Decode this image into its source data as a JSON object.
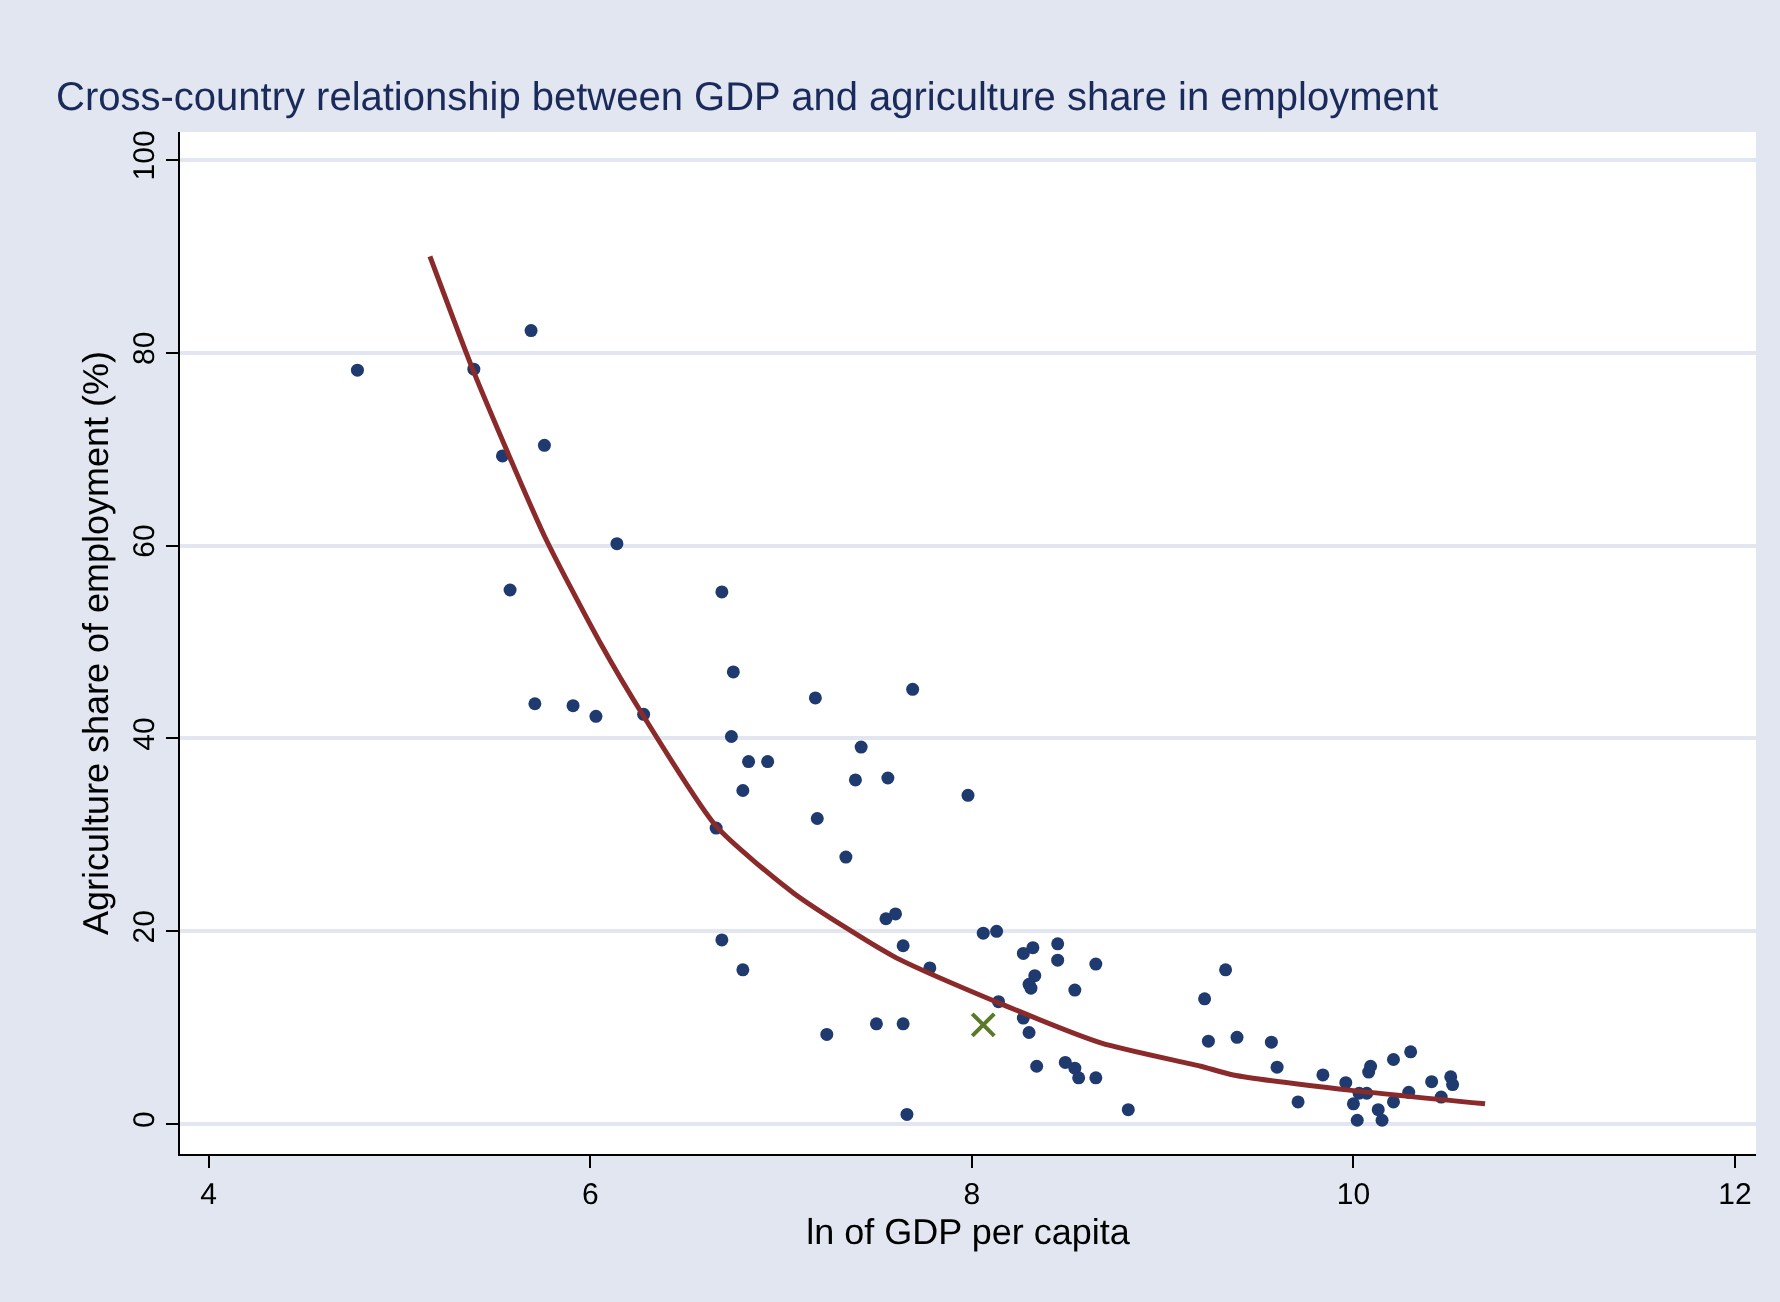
{
  "chart_data": {
    "type": "scatter",
    "title": "Cross-country relationship between GDP and agriculture share in employment",
    "xlabel": "ln of GDP per capita",
    "ylabel": "Agriculture share of employment (%)",
    "xlim": [
      3.85,
      12.11
    ],
    "xticks": [
      4,
      6,
      8,
      10,
      12
    ],
    "ylim": [
      -3.1,
      102.9
    ],
    "yticks": [
      0,
      20,
      40,
      60,
      80,
      100
    ],
    "grid": "y",
    "series": [
      {
        "marker": "circle",
        "color": "#1f3a6e",
        "x": [
          4.78,
          5.39,
          5.69,
          5.76,
          5.54,
          6.14,
          5.58,
          6.69,
          6.75,
          5.71,
          5.91,
          6.03,
          6.28,
          6.74,
          6.83,
          6.93,
          6.8,
          6.66,
          6.69,
          6.8,
          7.18,
          7.69,
          7.42,
          7.39,
          7.56,
          7.19,
          7.34,
          7.98,
          7.55,
          7.6,
          7.64,
          7.78,
          8.06,
          8.13,
          7.24,
          7.5,
          7.64,
          7.66,
          8.27,
          8.32,
          8.45,
          8.45,
          8.65,
          8.3,
          8.33,
          8.31,
          8.54,
          8.14,
          8.27,
          8.3,
          8.34,
          8.49,
          8.54,
          8.56,
          8.65,
          8.82,
          9.33,
          9.22,
          9.24,
          9.39,
          9.57,
          9.6,
          9.71,
          9.84,
          9.96,
          10.0,
          10.02,
          10.03,
          10.07,
          10.08,
          10.09,
          10.13,
          10.15,
          10.21,
          10.21,
          10.29,
          10.3,
          10.41,
          10.46,
          10.51,
          10.52
        ],
        "values": [
          78.2,
          78.3,
          82.3,
          70.4,
          69.3,
          60.2,
          55.4,
          55.2,
          46.9,
          43.6,
          43.4,
          42.3,
          42.5,
          40.2,
          37.6,
          37.6,
          34.6,
          30.7,
          19.1,
          16.0,
          44.2,
          45.1,
          39.1,
          35.7,
          35.9,
          31.7,
          27.7,
          34.1,
          21.3,
          21.8,
          18.5,
          16.2,
          19.8,
          20.0,
          9.3,
          10.4,
          10.4,
          1.0,
          17.7,
          18.3,
          18.7,
          17.0,
          16.6,
          14.5,
          15.4,
          14.1,
          13.9,
          12.7,
          11.0,
          9.5,
          6.0,
          6.4,
          5.8,
          4.8,
          4.8,
          1.5,
          16.0,
          13.0,
          8.6,
          9.0,
          8.5,
          5.9,
          2.3,
          5.1,
          4.3,
          2.1,
          0.4,
          3.2,
          3.2,
          5.4,
          6.0,
          1.5,
          0.4,
          2.3,
          6.7,
          3.3,
          7.5,
          4.4,
          2.8,
          4.9,
          4.1
        ]
      },
      {
        "type": "line",
        "marker": "none",
        "color": "#8b2a2a",
        "x": [
          5.16,
          5.39,
          5.76,
          6.05,
          6.28,
          6.66,
          7.07,
          7.59,
          8.15,
          8.68,
          9.2,
          9.37,
          9.99,
          10.69
        ],
        "values": [
          90,
          78,
          61,
          50,
          42.3,
          30.9,
          23.9,
          17.4,
          12.5,
          8.4,
          6.0,
          5.1,
          3.5,
          2.1
        ]
      },
      {
        "marker": "cross",
        "color": "#5a7a2a",
        "x": [
          8.06
        ],
        "values": [
          10.3
        ]
      }
    ]
  }
}
